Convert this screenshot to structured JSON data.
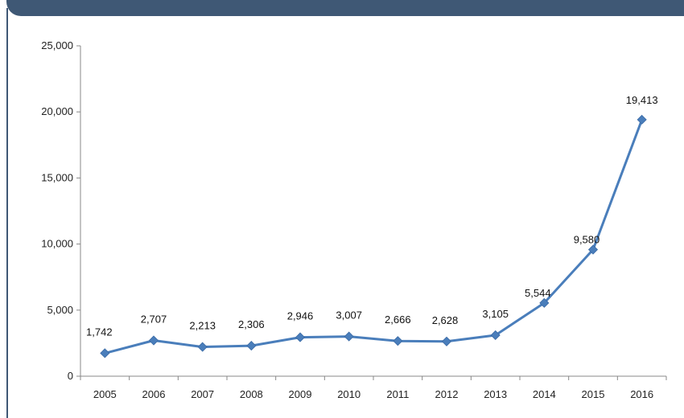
{
  "chart_data": {
    "type": "line",
    "categories": [
      "2005",
      "2006",
      "2007",
      "2008",
      "2009",
      "2010",
      "2011",
      "2012",
      "2013",
      "2014",
      "2015",
      "2016"
    ],
    "series": [
      {
        "values": [
          1742,
          2707,
          2213,
          2306,
          2946,
          3007,
          2666,
          2628,
          3105,
          5544,
          9580,
          19413
        ]
      }
    ],
    "data_labels": [
      "1,742",
      "2,707",
      "2,213",
      "2,306",
      "2,946",
      "3,007",
      "2,666",
      "2,628",
      "3,105",
      "5,544",
      "9,580",
      "19,413"
    ],
    "y_ticks": [
      0,
      5000,
      10000,
      15000,
      20000,
      25000
    ],
    "y_tick_labels": [
      "0",
      "5,000",
      "10,000",
      "15,000",
      "20,000",
      "25,000"
    ],
    "ylim": [
      0,
      25000
    ],
    "grid": false,
    "title": "",
    "xlabel": "",
    "ylabel": "",
    "colors": {
      "line": "#4a7ebb",
      "marker": "#4a7ebb",
      "frame": "#3f5875",
      "axis": "#888888"
    }
  }
}
